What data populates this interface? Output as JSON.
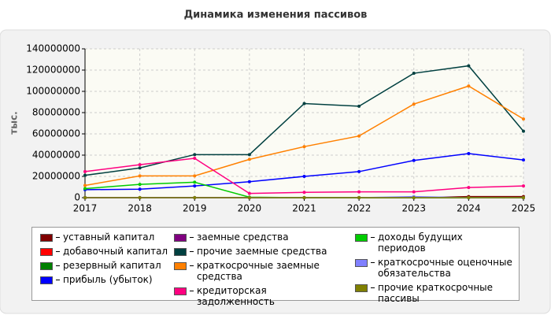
{
  "chart_data": {
    "type": "line",
    "title": "Динамика изменения пассивов",
    "y_label": "тыс.",
    "x": [
      2017,
      2018,
      2019,
      2020,
      2021,
      2022,
      2023,
      2024,
      2025
    ],
    "xlim": [
      2017,
      2025
    ],
    "xticks": [
      2017,
      2018,
      2019,
      2020,
      2021,
      2022,
      2023,
      2024,
      2025
    ],
    "ylim": [
      0,
      140000000
    ],
    "yticks": [
      0,
      20000000,
      40000000,
      60000000,
      80000000,
      100000000,
      120000000,
      140000000
    ],
    "grid": true,
    "series": [
      {
        "name": "уставный капитал",
        "color": "#800000",
        "values": [
          0,
          0,
          0,
          0,
          0,
          0,
          0,
          1000000,
          1000000
        ]
      },
      {
        "name": "добавочный капитал",
        "color": "#ff0000",
        "values": [
          0,
          0,
          0,
          0,
          0,
          0,
          0,
          0,
          0
        ]
      },
      {
        "name": "резервный капитал",
        "color": "#008000",
        "values": [
          0,
          0,
          0,
          0,
          0,
          0,
          0,
          0,
          0
        ]
      },
      {
        "name": "прибыль (убыток)",
        "color": "#0000ff",
        "values": [
          7500000,
          8000000,
          11000000,
          15000000,
          20000000,
          24500000,
          35000000,
          41500000,
          35500000
        ]
      },
      {
        "name": "заемные средства",
        "color": "#800080",
        "values": [
          0,
          0,
          0,
          0,
          0,
          0,
          0,
          0,
          0
        ]
      },
      {
        "name": "прочие заемные средства",
        "color": "#004040",
        "values": [
          21000000,
          28000000,
          40500000,
          40500000,
          88500000,
          86000000,
          117000000,
          124000000,
          62500000
        ]
      },
      {
        "name": "краткосрочные заемные средства",
        "color": "#ff8000",
        "values": [
          11500000,
          20500000,
          20500000,
          36000000,
          48000000,
          58000000,
          88000000,
          105000000,
          74000000
        ]
      },
      {
        "name": "кредиторская задолженность",
        "color": "#ff0080",
        "values": [
          24500000,
          31000000,
          37000000,
          4000000,
          5000000,
          5500000,
          5500000,
          9500000,
          11000000
        ]
      },
      {
        "name": "доходы будущих периодов",
        "color": "#00cc00",
        "values": [
          8500000,
          12500000,
          14500000,
          500000,
          0,
          0,
          0,
          0,
          0
        ]
      },
      {
        "name": "краткосрочные оценочные обязательства",
        "color": "#8080ff",
        "values": [
          0,
          0,
          0,
          0,
          0,
          0,
          1000000,
          0,
          0
        ]
      },
      {
        "name": "прочие краткосрочные пассивы",
        "color": "#808000",
        "values": [
          0,
          0,
          0,
          0,
          0,
          0,
          0,
          0,
          0
        ]
      }
    ]
  }
}
